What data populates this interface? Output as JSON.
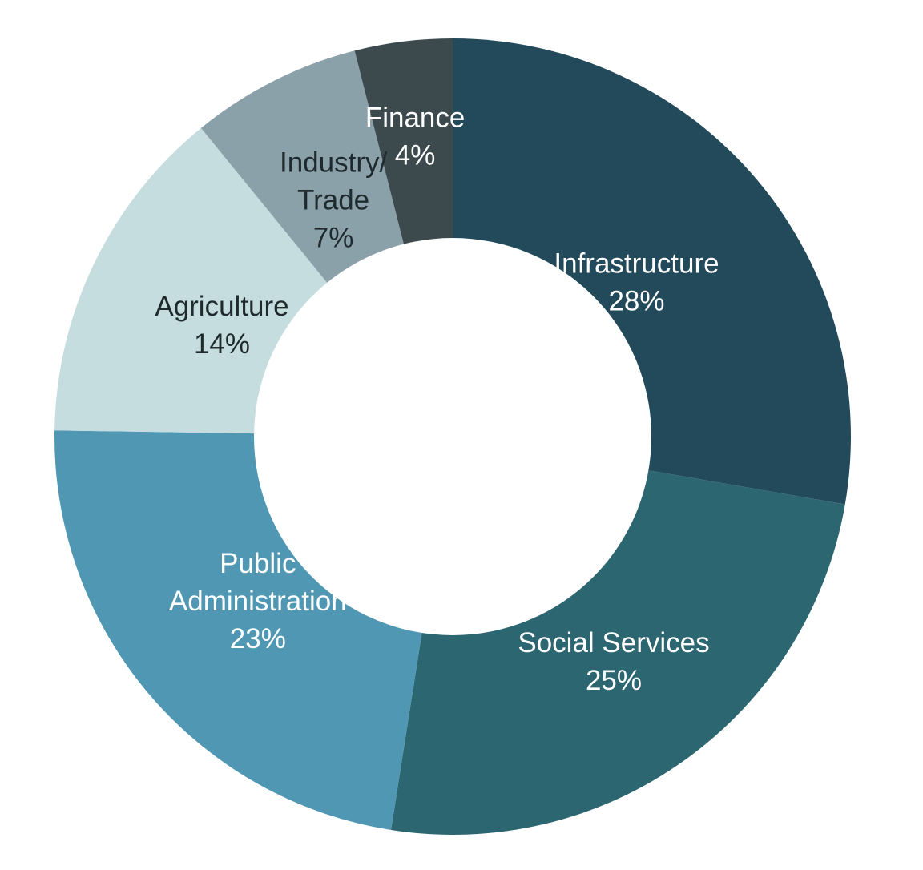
{
  "chart_data": {
    "type": "pie",
    "variant": "donut",
    "title": "",
    "direction": "clockwise from top",
    "slices": [
      {
        "label_lines": [
          "Infrastructure"
        ],
        "value_label": "28%",
        "value": 28,
        "color": "#234A5A",
        "text_color": "#ffffff"
      },
      {
        "label_lines": [
          "Social Services"
        ],
        "value_label": "25%",
        "value": 25,
        "color": "#2C6670",
        "text_color": "#ffffff"
      },
      {
        "label_lines": [
          "Public",
          "Administration"
        ],
        "value_label": "23%",
        "value": 23,
        "color": "#4F97B3",
        "text_color": "#ffffff"
      },
      {
        "label_lines": [
          "Agriculture"
        ],
        "value_label": "14%",
        "value": 14,
        "color": "#C6DDE0",
        "text_color": "#1f2a2e"
      },
      {
        "label_lines": [
          "Industry/",
          "Trade"
        ],
        "value_label": "7%",
        "value": 7,
        "color": "#8AA1A9",
        "text_color": "#1f2a2e"
      },
      {
        "label_lines": [
          "Finance"
        ],
        "value_label": "4%",
        "value": 4,
        "color": "#3C4A4E",
        "text_color": "#ffffff"
      }
    ]
  }
}
